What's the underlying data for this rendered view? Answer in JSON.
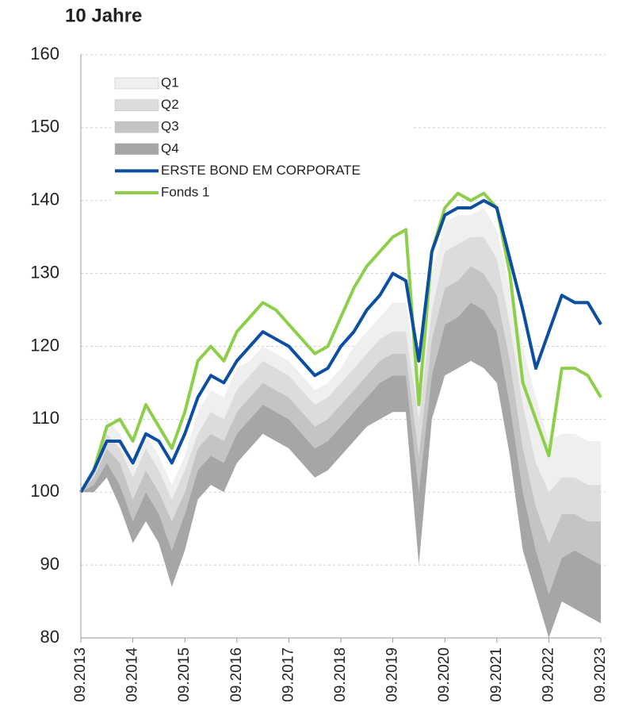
{
  "chart_data": {
    "type": "fan",
    "title": "10 Jahre",
    "x": [
      "09.2013",
      "12.2013",
      "03.2014",
      "06.2014",
      "09.2014",
      "12.2014",
      "03.2015",
      "06.2015",
      "09.2015",
      "12.2015",
      "03.2016",
      "06.2016",
      "09.2016",
      "12.2016",
      "03.2017",
      "06.2017",
      "09.2017",
      "12.2017",
      "03.2018",
      "06.2018",
      "09.2018",
      "12.2018",
      "03.2019",
      "06.2019",
      "09.2019",
      "12.2019",
      "03.2020",
      "06.2020",
      "09.2020",
      "12.2020",
      "03.2021",
      "06.2021",
      "09.2021",
      "12.2021",
      "03.2022",
      "06.2022",
      "09.2022",
      "12.2022",
      "03.2023",
      "06.2023",
      "09.2023"
    ],
    "xlim": [
      "09.2013",
      "09.2023"
    ],
    "xticks": [
      "09.2013",
      "09.2014",
      "09.2015",
      "09.2016",
      "09.2017",
      "09.2018",
      "09.2019",
      "09.2020",
      "09.2021",
      "09.2022",
      "09.2023"
    ],
    "ylim": [
      80,
      160
    ],
    "yticks": [
      80,
      90,
      100,
      110,
      120,
      130,
      140,
      150,
      160
    ],
    "grid": true,
    "legend": "top-left",
    "bands": [
      {
        "name": "Q1",
        "color": "#efefef",
        "values": [
          100,
          104,
          110,
          108,
          104,
          108,
          105,
          101,
          105,
          111,
          114,
          113,
          117,
          118,
          120,
          119,
          118,
          116,
          114,
          115,
          117,
          120,
          122,
          124,
          126,
          126,
          115,
          130,
          137,
          138,
          138,
          139,
          136,
          128,
          120,
          113,
          107,
          108,
          108,
          107,
          107
        ]
      },
      {
        "name": "Q2",
        "color": "#dcdcdc",
        "values": [
          100,
          103,
          108,
          106,
          102,
          106,
          103,
          99,
          103,
          108,
          111,
          110,
          114,
          116,
          118,
          117,
          116,
          114,
          112,
          113,
          115,
          117,
          119,
          121,
          122,
          122,
          110,
          125,
          133,
          134,
          135,
          135,
          132,
          123,
          112,
          104,
          100,
          102,
          102,
          101,
          101
        ]
      },
      {
        "name": "Q3",
        "color": "#c4c4c4",
        "values": [
          100,
          102,
          106,
          104,
          99,
          103,
          100,
          96,
          100,
          106,
          108,
          107,
          111,
          113,
          115,
          114,
          113,
          111,
          109,
          110,
          112,
          114,
          116,
          118,
          119,
          119,
          105,
          121,
          128,
          129,
          131,
          130,
          127,
          118,
          106,
          98,
          93,
          97,
          97,
          96,
          96
        ]
      },
      {
        "name": "Q4",
        "color": "#a6a6a6",
        "values": [
          100,
          101,
          104,
          101,
          96,
          100,
          97,
          92,
          97,
          103,
          105,
          104,
          108,
          110,
          112,
          111,
          110,
          108,
          106,
          107,
          109,
          111,
          113,
          115,
          116,
          116,
          100,
          116,
          123,
          124,
          126,
          125,
          122,
          112,
          100,
          92,
          86,
          91,
          92,
          91,
          90
        ],
        "lower": [
          100,
          100,
          102,
          98,
          93,
          96,
          93,
          87,
          92,
          99,
          101,
          100,
          104,
          106,
          108,
          107,
          106,
          104,
          102,
          103,
          105,
          107,
          109,
          110,
          111,
          111,
          90,
          110,
          116,
          117,
          118,
          117,
          115,
          105,
          92,
          86,
          80,
          85,
          84,
          83,
          82
        ]
      }
    ],
    "series": [
      {
        "name": "ERSTE BOND EM CORPORATE",
        "color": "#0b4ea2",
        "values": [
          100,
          103,
          107,
          107,
          104,
          108,
          107,
          104,
          108,
          113,
          116,
          115,
          118,
          120,
          122,
          121,
          120,
          118,
          116,
          117,
          120,
          122,
          125,
          127,
          130,
          129,
          118,
          133,
          138,
          139,
          139,
          140,
          139,
          132,
          125,
          117,
          122,
          127,
          126,
          126,
          123
        ]
      },
      {
        "name": "Fonds 1",
        "color": "#8dcf4a",
        "values": [
          100,
          103,
          109,
          110,
          107,
          112,
          109,
          106,
          111,
          118,
          120,
          118,
          122,
          124,
          126,
          125,
          123,
          121,
          119,
          120,
          124,
          128,
          131,
          133,
          135,
          136,
          112,
          133,
          139,
          141,
          140,
          141,
          139,
          130,
          115,
          110,
          105,
          117,
          117,
          116,
          113
        ]
      }
    ]
  }
}
